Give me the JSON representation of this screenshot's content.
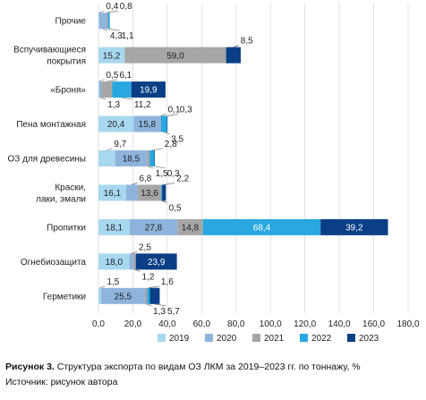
{
  "chart_data": {
    "type": "bar",
    "orientation": "horizontal",
    "stacked": true,
    "xlim": [
      0,
      180
    ],
    "xticks": [
      "0,0",
      "20,0",
      "40,0",
      "60,0",
      "80,0",
      "100,0",
      "120,0",
      "140,0",
      "160,0",
      "180,0"
    ],
    "grid": true,
    "legend_position": "bottom",
    "categories": [
      "Прочие",
      "Вспучивающиеся покрытия",
      "«Броня»",
      "Пена монтажная",
      "ОЗ для древесины",
      "Краски, лаки, эмали",
      "Пропитки",
      "Огнебиозащита",
      "Герметики"
    ],
    "series": [
      {
        "name": "2019",
        "color": "#a8d8f0",
        "values": [
          0.4,
          15.2,
          0.5,
          20.4,
          9.7,
          16.1,
          18.1,
          18.0,
          1.5
        ],
        "labels": [
          "0,4",
          "15,2",
          "0,5",
          "20,4",
          "9,7",
          "16,1",
          "18,1",
          "18,0",
          "1,5"
        ]
      },
      {
        "name": "2020",
        "color": "#8fb4dc",
        "values": [
          4.3,
          0.0,
          1.3,
          15.8,
          18.5,
          6.8,
          27.8,
          2.5,
          25.5
        ],
        "labels": [
          "4,3",
          "",
          "1,3",
          "15,8",
          "18,5",
          "6,8",
          "27,8",
          "2,5",
          "25,5"
        ]
      },
      {
        "name": "2021",
        "color": "#a6a6a6",
        "values": [
          0.8,
          59.0,
          6.1,
          0.1,
          1.5,
          13.6,
          14.8,
          1.2,
          1.3
        ],
        "labels": [
          "0,8",
          "59,0",
          "6,1",
          "0,1",
          "1,5",
          "13,6",
          "14,8",
          "1,2",
          "1,3"
        ]
      },
      {
        "name": "2022",
        "color": "#29a7df",
        "values": [
          1.1,
          0.0,
          11.2,
          3.5,
          2.8,
          0.5,
          68.4,
          0.0,
          1.6
        ],
        "labels": [
          "1,1",
          "",
          "11,2",
          "3,5",
          "2,8",
          "0,5",
          "68,4",
          "",
          "1,6"
        ]
      },
      {
        "name": "2023",
        "color": "#0a3f86",
        "values": [
          0.0,
          8.5,
          19.9,
          0.3,
          0.3,
          2.2,
          39.2,
          23.9,
          5.7
        ],
        "labels": [
          "",
          "8,5",
          "19,9",
          "0,3",
          "0,3",
          "2,2",
          "39,2",
          "23,9",
          "5,7"
        ]
      }
    ]
  },
  "caption": {
    "title_bold": "Рисунок 3.",
    "title_rest": " Структура экспорта по видам ОЗ ЛКМ за 2019–2023 гг. по тоннажу, %",
    "source": "Источник: рисунок автора"
  }
}
